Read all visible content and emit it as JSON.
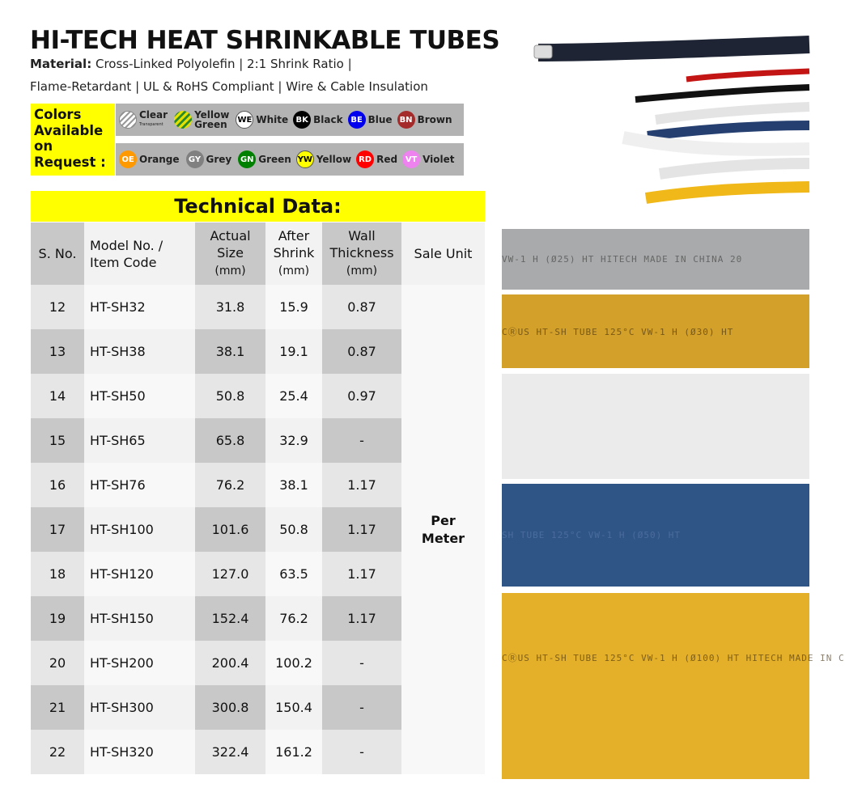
{
  "header": {
    "title": "HI-TECH HEAT SHRINKABLE TUBES",
    "material_label": "Material:",
    "material_line1": " Cross-Linked Polyolefin | 2:1 Shrink Ratio |",
    "material_line2": "Flame-Retardant | UL & RoHS Compliant | Wire & Cable Insulation"
  },
  "colors": {
    "label": "Colors Available on Request :",
    "row1": [
      {
        "code": "",
        "name": "Clear",
        "note": "Transparent",
        "color": "#ffffff",
        "pattern": "clear-stripes"
      },
      {
        "code": "",
        "name": "Yellow Green",
        "color": "#f2e600",
        "pattern": "yellow-green-stripes"
      },
      {
        "code": "WE",
        "name": "White",
        "color": "#ffffff"
      },
      {
        "code": "BK",
        "name": "Black",
        "color": "#000000"
      },
      {
        "code": "BE",
        "name": "Blue",
        "color": "#0000ee"
      },
      {
        "code": "BN",
        "name": "Brown",
        "color": "#a52a2a"
      }
    ],
    "row2": [
      {
        "code": "OE",
        "name": "Orange",
        "color": "#ff9900"
      },
      {
        "code": "GY",
        "name": "Grey",
        "color": "#808080"
      },
      {
        "code": "GN",
        "name": "Green",
        "color": "#008000"
      },
      {
        "code": "YW",
        "name": "Yellow",
        "color": "#ffff00"
      },
      {
        "code": "RD",
        "name": "Red",
        "color": "#ff0000"
      },
      {
        "code": "VT",
        "name": "Violet",
        "color": "#ee82ee"
      }
    ]
  },
  "table": {
    "title": "Technical Data:",
    "headers": {
      "sno": "S. No.",
      "model1": "Model No. /",
      "model2": "Item Code",
      "actual1": "Actual",
      "actual2": "Size",
      "after1": "After",
      "after2": "Shrink",
      "wall1": "Wall",
      "wall2": "Thickness",
      "unit": "(mm)",
      "sale": "Sale Unit"
    },
    "sale_unit1": "Per",
    "sale_unit2": "Meter",
    "rows": [
      [
        "12",
        "HT-SH32",
        "31.8",
        "15.9",
        "0.87"
      ],
      [
        "13",
        "HT-SH38",
        "38.1",
        "19.1",
        "0.87"
      ],
      [
        "14",
        "HT-SH50",
        "50.8",
        "25.4",
        "0.97"
      ],
      [
        "15",
        "HT-SH65",
        "65.8",
        "32.9",
        "-"
      ],
      [
        "16",
        "HT-SH76",
        "76.2",
        "38.1",
        "1.17"
      ],
      [
        "17",
        "HT-SH100",
        "101.6",
        "50.8",
        "1.17"
      ],
      [
        "18",
        "HT-SH120",
        "127.0",
        "63.5",
        "1.17"
      ],
      [
        "19",
        "HT-SH150",
        "152.4",
        "76.2",
        "1.17"
      ],
      [
        "20",
        "HT-SH200",
        "200.4",
        "100.2",
        "-"
      ],
      [
        "21",
        "HT-SH300",
        "300.8",
        "150.4",
        "-"
      ],
      [
        "22",
        "HT-SH320",
        "322.4",
        "161.2",
        "-"
      ]
    ]
  },
  "photo": {
    "tubes": [
      {
        "color": "#a8aaab",
        "print": "VW-1 H (Ø25) HT HITECH MADE IN CHINA 20"
      },
      {
        "color": "#d3a02a",
        "print": "CⓇUS HT-SH TUBE 125°C VW-1 H (Ø30) HT"
      },
      {
        "color": "#ebebeb",
        "print": ""
      },
      {
        "color": "#2f5587",
        "print": "SH TUBE 125°C VW-1 H (Ø50) HT"
      },
      {
        "color": "#e4b02a",
        "print": "CⓇUS HT-SH TUBE 125°C VW-1 H (Ø100) HT HITECH MADE IN C"
      }
    ]
  }
}
